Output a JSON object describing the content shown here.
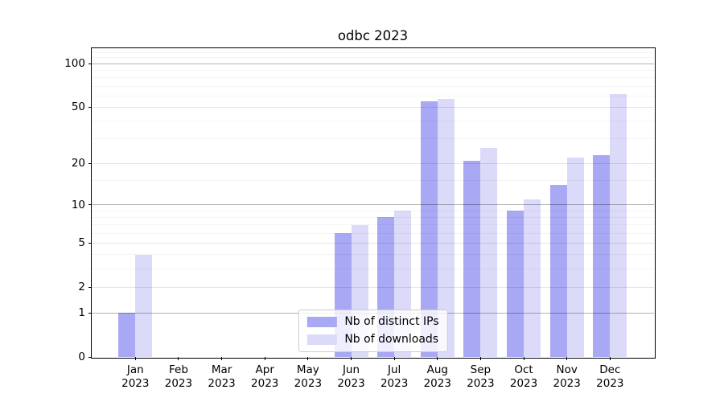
{
  "title": "odbc 2023",
  "chart_data": {
    "type": "bar",
    "title": "odbc 2023",
    "xlabel": "",
    "ylabel": "",
    "categories": [
      "Jan",
      "Feb",
      "Mar",
      "Apr",
      "May",
      "Jun",
      "Jul",
      "Aug",
      "Sep",
      "Oct",
      "Nov",
      "Dec"
    ],
    "x_year_label": "2023",
    "series": [
      {
        "name": "Nb of distinct IPs",
        "color": "#a8a8f4",
        "values": [
          1,
          0,
          0,
          0,
          0,
          6,
          8,
          55,
          21,
          9,
          14,
          23
        ]
      },
      {
        "name": "Nb of downloads",
        "color": "#dbdbf9",
        "values": [
          4,
          0,
          0,
          0,
          0,
          7,
          9,
          57,
          26,
          11,
          22,
          62
        ]
      }
    ],
    "y_scale": "log10(1+v)",
    "ylim": [
      0,
      128
    ],
    "y_ticks": [
      0,
      1,
      2,
      5,
      10,
      20,
      50,
      100
    ],
    "y_decade_ticks": [
      1,
      10,
      100
    ],
    "y_minor_gridlines": [
      3,
      4,
      6,
      7,
      8,
      9,
      15,
      30,
      40,
      60,
      70,
      80,
      90,
      110,
      120
    ],
    "grid": true,
    "legend_position": "lower center"
  }
}
